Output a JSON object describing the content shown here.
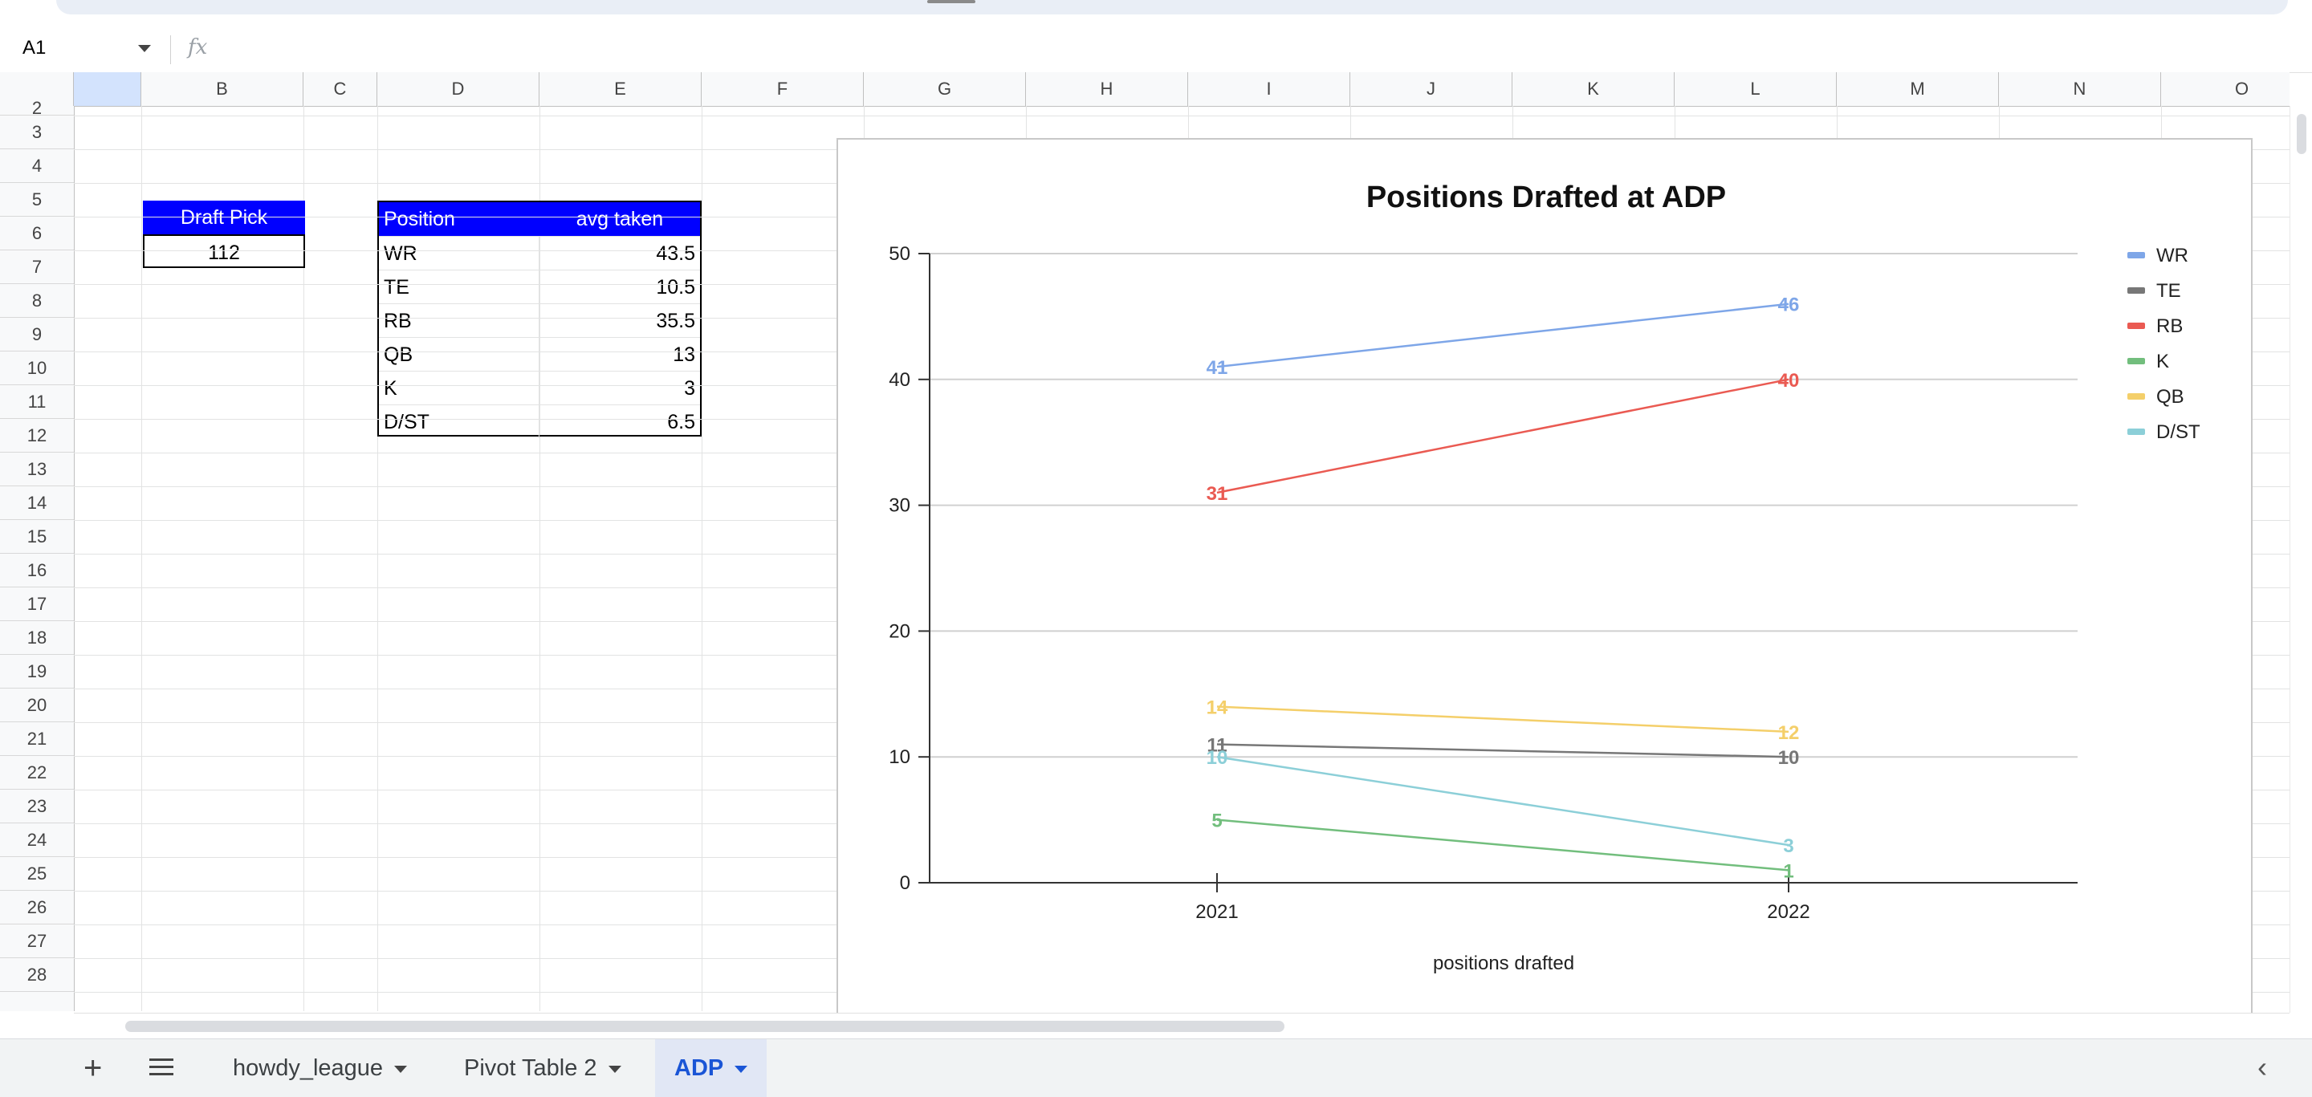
{
  "formula_bar": {
    "name_box": "A1",
    "fx_label": "fx",
    "formula": ""
  },
  "columns": [
    "B",
    "C",
    "D",
    "E",
    "F",
    "G",
    "H",
    "I",
    "J",
    "K",
    "L",
    "M",
    "N",
    "O"
  ],
  "rows": [
    "2",
    "3",
    "4",
    "5",
    "6",
    "7",
    "8",
    "9",
    "10",
    "11",
    "12",
    "13",
    "14",
    "15",
    "16",
    "17",
    "18",
    "19",
    "20",
    "21",
    "22",
    "23",
    "24",
    "25",
    "26",
    "27",
    "28"
  ],
  "draft_pick": {
    "header": "Draft Pick",
    "value": "112"
  },
  "positions_table": {
    "headers": [
      "Position",
      "avg taken"
    ],
    "rows": [
      [
        "WR",
        "43.5"
      ],
      [
        "TE",
        "10.5"
      ],
      [
        "RB",
        "35.5"
      ],
      [
        "QB",
        "13"
      ],
      [
        "K",
        "3"
      ],
      [
        "D/ST",
        "6.5"
      ]
    ]
  },
  "chart_data": {
    "type": "line",
    "title": "Positions Drafted at ADP",
    "xlabel": "positions drafted",
    "ylabel": "",
    "categories": [
      "2021",
      "2022"
    ],
    "ylim": [
      0,
      50
    ],
    "yticks": [
      "0",
      "10",
      "20",
      "30",
      "40",
      "50"
    ],
    "grid": true,
    "legend_position": "right",
    "series": [
      {
        "name": "WR",
        "values": [
          41,
          46
        ],
        "color": "#7ea6e8"
      },
      {
        "name": "TE",
        "values": [
          11,
          10
        ],
        "color": "#777777"
      },
      {
        "name": "RB",
        "values": [
          31,
          40
        ],
        "color": "#ea5a52"
      },
      {
        "name": "K",
        "values": [
          5,
          1
        ],
        "color": "#72be7d"
      },
      {
        "name": "QB",
        "values": [
          14,
          12
        ],
        "color": "#f4cf6a"
      },
      {
        "name": "D/ST",
        "values": [
          10,
          3
        ],
        "color": "#8ccfd8"
      }
    ]
  },
  "tabs": [
    {
      "label": "howdy_league",
      "active": false
    },
    {
      "label": "Pivot Table 2",
      "active": false
    },
    {
      "label": "ADP",
      "active": true
    }
  ],
  "icons": {
    "add_sheet": "+",
    "collapse": "‹"
  }
}
